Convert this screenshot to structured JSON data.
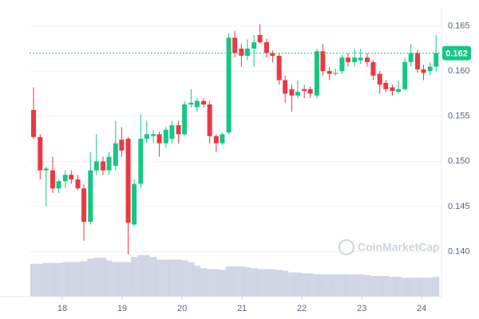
{
  "chart_data": {
    "type": "candlestick",
    "watermark": "CoinMarketCap",
    "x": [
      17.52,
      17.63,
      17.73,
      17.84,
      17.94,
      18.05,
      18.15,
      18.26,
      18.36,
      18.47,
      18.57,
      18.68,
      18.78,
      18.89,
      18.99,
      19.1,
      19.2,
      19.31,
      19.41,
      19.52,
      19.62,
      19.73,
      19.83,
      19.94,
      20.04,
      20.15,
      20.25,
      20.36,
      20.46,
      20.57,
      20.67,
      20.78,
      20.88,
      20.99,
      21.09,
      21.2,
      21.3,
      21.41,
      21.51,
      21.62,
      21.72,
      21.83,
      21.93,
      22.04,
      22.14,
      22.25,
      22.35,
      22.46,
      22.56,
      22.67,
      22.77,
      22.88,
      22.98,
      23.09,
      23.19,
      23.3,
      23.4,
      23.51,
      23.61,
      23.72,
      23.82,
      23.93,
      24.03,
      24.14,
      24.24
    ],
    "open": [
      0.1557,
      0.1527,
      0.149,
      0.149,
      0.147,
      0.1478,
      0.1485,
      0.148,
      0.147,
      0.1433,
      0.149,
      0.15,
      0.149,
      0.1495,
      0.1524,
      0.1525,
      0.143,
      0.1475,
      0.1525,
      0.1528,
      0.153,
      0.152,
      0.1525,
      0.154,
      0.153,
      0.1563,
      0.156,
      0.1567,
      0.1563,
      0.1528,
      0.152,
      0.1532,
      0.1637,
      0.1625,
      0.1617,
      0.1625,
      0.164,
      0.1632,
      0.162,
      0.1617,
      0.159,
      0.158,
      0.1573,
      0.158,
      0.158,
      0.1573,
      0.1622,
      0.16,
      0.1597,
      0.16,
      0.1615,
      0.161,
      0.1612,
      0.1615,
      0.161,
      0.1597,
      0.1587,
      0.1582,
      0.1577,
      0.158,
      0.161,
      0.162,
      0.1602,
      0.16,
      0.1605
    ],
    "high": [
      0.1582,
      0.153,
      0.1494,
      0.1505,
      0.148,
      0.149,
      0.149,
      0.1485,
      0.1475,
      0.151,
      0.153,
      0.1505,
      0.151,
      0.1545,
      0.1538,
      0.1527,
      0.148,
      0.1552,
      0.1545,
      0.1535,
      0.1533,
      0.1538,
      0.1545,
      0.1545,
      0.1567,
      0.158,
      0.157,
      0.157,
      0.1567,
      0.153,
      0.1532,
      0.1642,
      0.1645,
      0.163,
      0.1635,
      0.164,
      0.1652,
      0.1636,
      0.1623,
      0.162,
      0.1595,
      0.1585,
      0.159,
      0.1585,
      0.1583,
      0.1625,
      0.163,
      0.1605,
      0.1603,
      0.1618,
      0.162,
      0.1625,
      0.1625,
      0.162,
      0.1612,
      0.16,
      0.159,
      0.1585,
      0.159,
      0.1615,
      0.163,
      0.1623,
      0.1607,
      0.161,
      0.164
    ],
    "low": [
      0.1525,
      0.148,
      0.145,
      0.1465,
      0.1465,
      0.147,
      0.1475,
      0.1468,
      0.1412,
      0.143,
      0.1485,
      0.1485,
      0.1485,
      0.149,
      0.1505,
      0.1397,
      0.1428,
      0.147,
      0.152,
      0.152,
      0.1505,
      0.1515,
      0.152,
      0.152,
      0.1528,
      0.156,
      0.1555,
      0.156,
      0.152,
      0.151,
      0.1518,
      0.153,
      0.1615,
      0.1605,
      0.1612,
      0.1605,
      0.163,
      0.1615,
      0.161,
      0.1585,
      0.1565,
      0.1555,
      0.157,
      0.157,
      0.157,
      0.157,
      0.1595,
      0.159,
      0.1595,
      0.1597,
      0.1605,
      0.1605,
      0.1608,
      0.1605,
      0.159,
      0.1575,
      0.1577,
      0.1573,
      0.1575,
      0.1578,
      0.1605,
      0.1598,
      0.159,
      0.1595,
      0.16
    ],
    "close": [
      0.1527,
      0.149,
      0.1492,
      0.147,
      0.1478,
      0.1485,
      0.148,
      0.147,
      0.1433,
      0.149,
      0.15,
      0.149,
      0.1505,
      0.152,
      0.1512,
      0.1432,
      0.1475,
      0.1525,
      0.153,
      0.153,
      0.152,
      0.1535,
      0.154,
      0.153,
      0.1563,
      0.1565,
      0.1567,
      0.1563,
      0.1528,
      0.152,
      0.153,
      0.1637,
      0.162,
      0.1617,
      0.1625,
      0.1632,
      0.1632,
      0.162,
      0.1617,
      0.159,
      0.1575,
      0.1573,
      0.1577,
      0.1578,
      0.1575,
      0.1622,
      0.16,
      0.1597,
      0.1598,
      0.1615,
      0.161,
      0.1615,
      0.1615,
      0.161,
      0.1595,
      0.1585,
      0.158,
      0.1578,
      0.158,
      0.161,
      0.162,
      0.1602,
      0.1598,
      0.1605,
      0.162
    ],
    "volume": [
      38,
      38,
      39,
      39,
      39,
      40,
      40,
      40,
      41,
      44,
      45,
      45,
      42,
      40,
      40,
      40,
      46,
      48,
      48,
      46,
      43,
      43,
      43,
      43,
      42,
      40,
      36,
      33,
      32,
      32,
      31,
      35,
      35,
      35,
      34,
      33,
      32,
      32,
      32,
      31,
      30,
      28,
      28,
      27,
      27,
      26,
      26,
      26,
      26,
      26,
      26,
      26,
      26,
      25,
      24,
      24,
      24,
      23,
      23,
      22,
      22,
      22,
      22,
      22,
      23
    ],
    "up_color": "#16c784",
    "down_color": "#ea3943",
    "volume_color": "#c9cfe0",
    "last_price": 0.162,
    "xlim": [
      17.453,
      24.33
    ],
    "xticks": [
      18,
      19,
      20,
      21,
      22,
      23,
      24
    ],
    "ylim": [
      0.135,
      0.167
    ],
    "yticks": [
      {
        "value": 0.14,
        "label": "0.140"
      },
      0.145,
      {
        "value": 0.15,
        "label": "0.150"
      },
      0.155,
      {
        "value": 0.16,
        "label": "0.160"
      },
      0.165
    ],
    "grid": true
  }
}
